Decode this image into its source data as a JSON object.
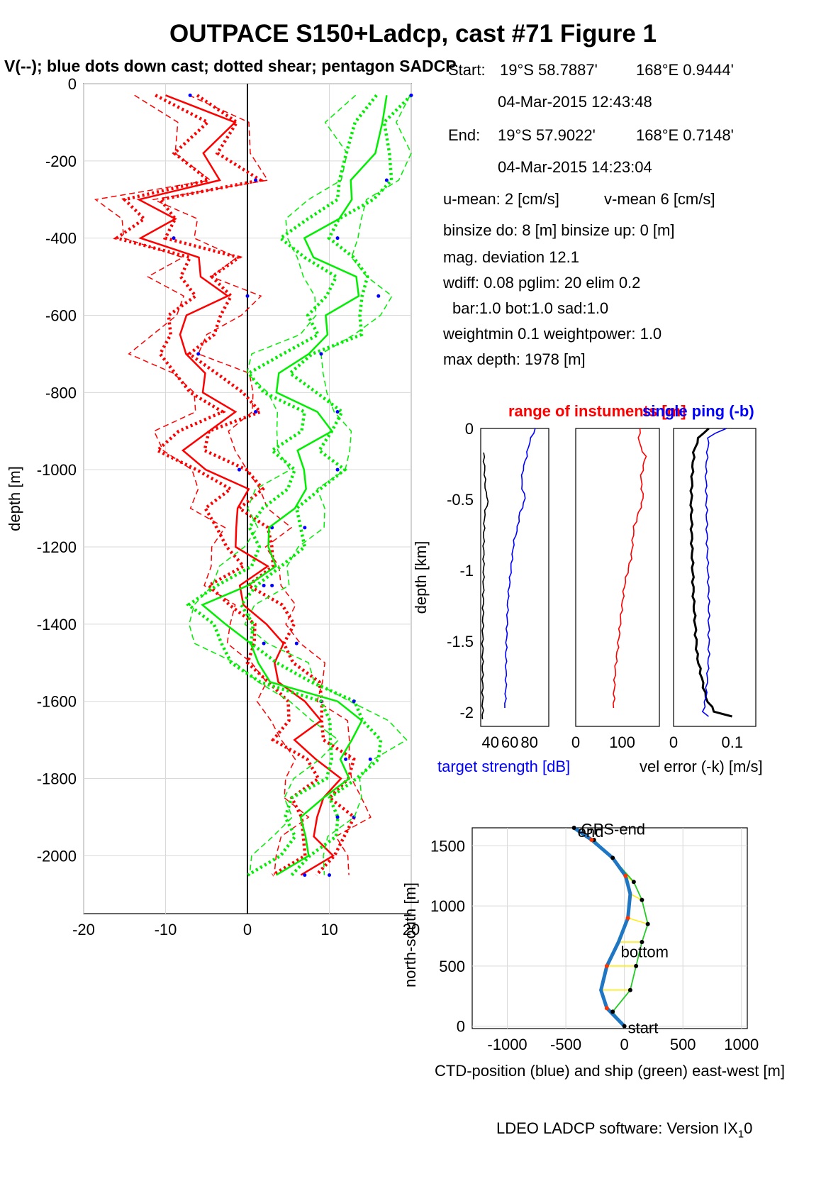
{
  "title": "OUTPACE S150+Ladcp, cast #71  Figure 1",
  "subtitle": "V(--); blue dots down cast; dotted shear; pentagon SADCP",
  "info": {
    "start_label": "Start:",
    "start_lat": "19°S 58.7887'",
    "start_lon": "168°E  0.9444'",
    "start_time": "04-Mar-2015 12:43:48",
    "end_label": "End:",
    "end_lat": "19°S 57.9022'",
    "end_lon": "168°E  0.7148'",
    "end_time": "04-Mar-2015 14:23:04",
    "u_mean": "u-mean:   2 [cm/s]",
    "v_mean": "v-mean   6 [cm/s]",
    "binsize": "binsize do: 8 [m]  binsize up:  0 [m]",
    "mag_dev": "mag. deviation 12.1",
    "wdiff": "wdiff: 0.08  pglim: 20  elim 0.2",
    "bar": "bar:1.0 bot:1.0 sad:1.0",
    "weight": "weightmin 0.1  weightpower: 1.0",
    "maxdepth": "max depth: 1978 [m]"
  },
  "footer": {
    "text": "LDEO LADCP software: Version IX",
    "sub": "1",
    "end": "0"
  },
  "colors": {
    "u": "#ff0000",
    "v": "#00ee00",
    "downcast_dots": "#0000ff",
    "ctd_track": "#1f77c4",
    "ship_track": "#22cc22",
    "links": "#ffee00",
    "grid": "#d9d9d9"
  },
  "chart_data": [
    {
      "id": "velocity",
      "type": "line",
      "ylabel": "depth [m]",
      "xlim": [
        -20,
        20
      ],
      "ylim": [
        -2150,
        0
      ],
      "xticks": [
        -20,
        -10,
        0,
        10,
        20
      ],
      "yticks": [
        0,
        -200,
        -400,
        -600,
        -800,
        -1000,
        -1200,
        -1400,
        -1600,
        -1800,
        -2000
      ],
      "grid": true,
      "series": [
        {
          "key": "u",
          "color": "#ff0000",
          "depth": [
            -30,
            -100,
            -180,
            -250,
            -300,
            -350,
            -400,
            -450,
            -500,
            -550,
            -600,
            -650,
            -700,
            -750,
            -800,
            -850,
            -900,
            -950,
            -1000,
            -1050,
            -1100,
            -1150,
            -1200,
            -1250,
            -1300,
            -1350,
            -1400,
            -1450,
            -1500,
            -1550,
            -1600,
            -1650,
            -1700,
            -1750,
            -1800,
            -1850,
            -1900,
            -1950,
            -2000,
            -2050
          ],
          "value": [
            -10,
            -3,
            -5,
            -2,
            -14,
            -10,
            -12,
            -5,
            -7,
            -3,
            -6,
            -8,
            -9,
            -5,
            -4,
            -2,
            -6,
            -7,
            -4,
            -1,
            -2,
            0,
            -1,
            1,
            -1,
            1,
            2,
            3,
            4,
            5,
            6,
            8,
            7,
            9,
            10,
            9,
            10,
            8,
            9,
            7
          ]
        },
        {
          "key": "v",
          "color": "#00ee00",
          "depth": [
            -30,
            -100,
            -180,
            -250,
            -300,
            -350,
            -400,
            -450,
            -500,
            -550,
            -600,
            -650,
            -700,
            -750,
            -800,
            -850,
            -900,
            -950,
            -1000,
            -1050,
            -1100,
            -1150,
            -1200,
            -1250,
            -1300,
            -1350,
            -1400,
            -1450,
            -1500,
            -1550,
            -1600,
            -1650,
            -1700,
            -1750,
            -1800,
            -1850,
            -1900,
            -1950,
            -2000,
            -2050
          ],
          "value": [
            17,
            15,
            16,
            14,
            12,
            10,
            8,
            9,
            12,
            13,
            11,
            10,
            6,
            4,
            5,
            8,
            9,
            7,
            8,
            6,
            5,
            4,
            3,
            2,
            0,
            -4,
            -3,
            -1,
            2,
            4,
            10,
            13,
            14,
            12,
            11,
            9,
            8,
            7,
            6,
            4
          ]
        }
      ]
    },
    {
      "id": "target_strength",
      "type": "line",
      "title_left": "range of instuments [m]",
      "xlabel": "target strength [dB]",
      "ylabel": "depth [km]",
      "xticks": [
        40,
        60,
        80
      ],
      "xlim": [
        30,
        100
      ],
      "ylim": [
        -2.1,
        0
      ],
      "yticks": [
        0,
        -0.5,
        -1,
        -1.5,
        -2
      ],
      "series": [
        {
          "key": "ts",
          "color": "#0000ff",
          "depth": [
            0,
            -0.1,
            -0.2,
            -0.3,
            -0.4,
            -0.5,
            -0.6,
            -0.7,
            -0.8,
            -1.0,
            -1.2,
            -1.4,
            -1.6,
            -1.8,
            -1.97
          ],
          "value": [
            86,
            80,
            77,
            73,
            72,
            76,
            70,
            68,
            64,
            61,
            58,
            57,
            56,
            56,
            55
          ]
        },
        {
          "key": "range",
          "color": "#000000",
          "depth": [
            -0.17,
            -0.3,
            -0.45,
            -0.5,
            -0.6,
            -0.8,
            -1.0,
            -1.5,
            -2.05
          ],
          "value": [
            33,
            34,
            35,
            38,
            34,
            33,
            33,
            32,
            32
          ]
        }
      ]
    },
    {
      "id": "range",
      "type": "line",
      "xticks": [
        0,
        100
      ],
      "xlim": [
        0,
        180
      ],
      "ylim": [
        -2.1,
        0
      ],
      "series": [
        {
          "key": "range",
          "color": "#ff0000",
          "depth": [
            0,
            -0.1,
            -0.2,
            -0.35,
            -0.5,
            -0.7,
            -0.9,
            -1.1,
            -1.3,
            -1.5,
            -1.7,
            -1.9,
            -1.97
          ],
          "value": [
            138,
            136,
            150,
            140,
            145,
            125,
            120,
            105,
            98,
            92,
            85,
            82,
            82
          ]
        }
      ]
    },
    {
      "id": "vel_error",
      "type": "line",
      "title_right": "single ping (-b)",
      "xlabel": "vel error (-k) [m/s]",
      "xticks": [
        0,
        0.1
      ],
      "xlim": [
        0,
        0.14
      ],
      "ylim": [
        -2.1,
        0
      ],
      "series": [
        {
          "key": "k",
          "color": "#000000",
          "depth": [
            0,
            -0.05,
            -0.15,
            -0.3,
            -0.5,
            -0.8,
            -1.2,
            -1.6,
            -1.9,
            -2.0,
            -2.03
          ],
          "value": [
            0.06,
            0.045,
            0.035,
            0.032,
            0.03,
            0.031,
            0.034,
            0.04,
            0.055,
            0.07,
            0.1
          ]
        },
        {
          "key": "b",
          "color": "#0000ff",
          "depth": [
            0,
            -0.05,
            -0.15,
            -0.3,
            -0.5,
            -0.8,
            -1.2,
            -1.6,
            -1.9,
            -2.0,
            -2.03
          ],
          "value": [
            0.09,
            0.06,
            0.058,
            0.055,
            0.056,
            0.057,
            0.06,
            0.06,
            0.055,
            0.05,
            0.06
          ]
        }
      ]
    },
    {
      "id": "track",
      "type": "line",
      "xlabel": "CTD-position (blue) and ship (green) east-west [m]",
      "ylabel": "north-south [m]",
      "xlim": [
        -1300,
        1050
      ],
      "ylim": [
        -20,
        1650
      ],
      "xticks": [
        -1000,
        -500,
        0,
        500,
        1000
      ],
      "yticks": [
        0,
        500,
        1000,
        1500
      ],
      "labels": [
        {
          "text": "start",
          "x": 30,
          "y": -10
        },
        {
          "text": "bottom",
          "x": -30,
          "y": 620
        },
        {
          "text": "end",
          "x": -400,
          "y": 1620
        },
        {
          "text": "GPS-end",
          "x": -370,
          "y": 1640
        }
      ],
      "series": [
        {
          "key": "ctd",
          "color": "#1f77c4",
          "x": [
            0,
            -150,
            -200,
            -150,
            -50,
            30,
            50,
            10,
            -100,
            -280,
            -430
          ],
          "y": [
            0,
            150,
            300,
            500,
            700,
            900,
            1100,
            1250,
            1400,
            1550,
            1650
          ]
        },
        {
          "key": "ship",
          "color": "#22cc22",
          "x": [
            0,
            -100,
            50,
            100,
            150,
            200,
            150,
            80,
            -100,
            -260,
            -430
          ],
          "y": [
            0,
            120,
            300,
            500,
            700,
            850,
            1050,
            1200,
            1400,
            1550,
            1650
          ]
        }
      ]
    }
  ]
}
